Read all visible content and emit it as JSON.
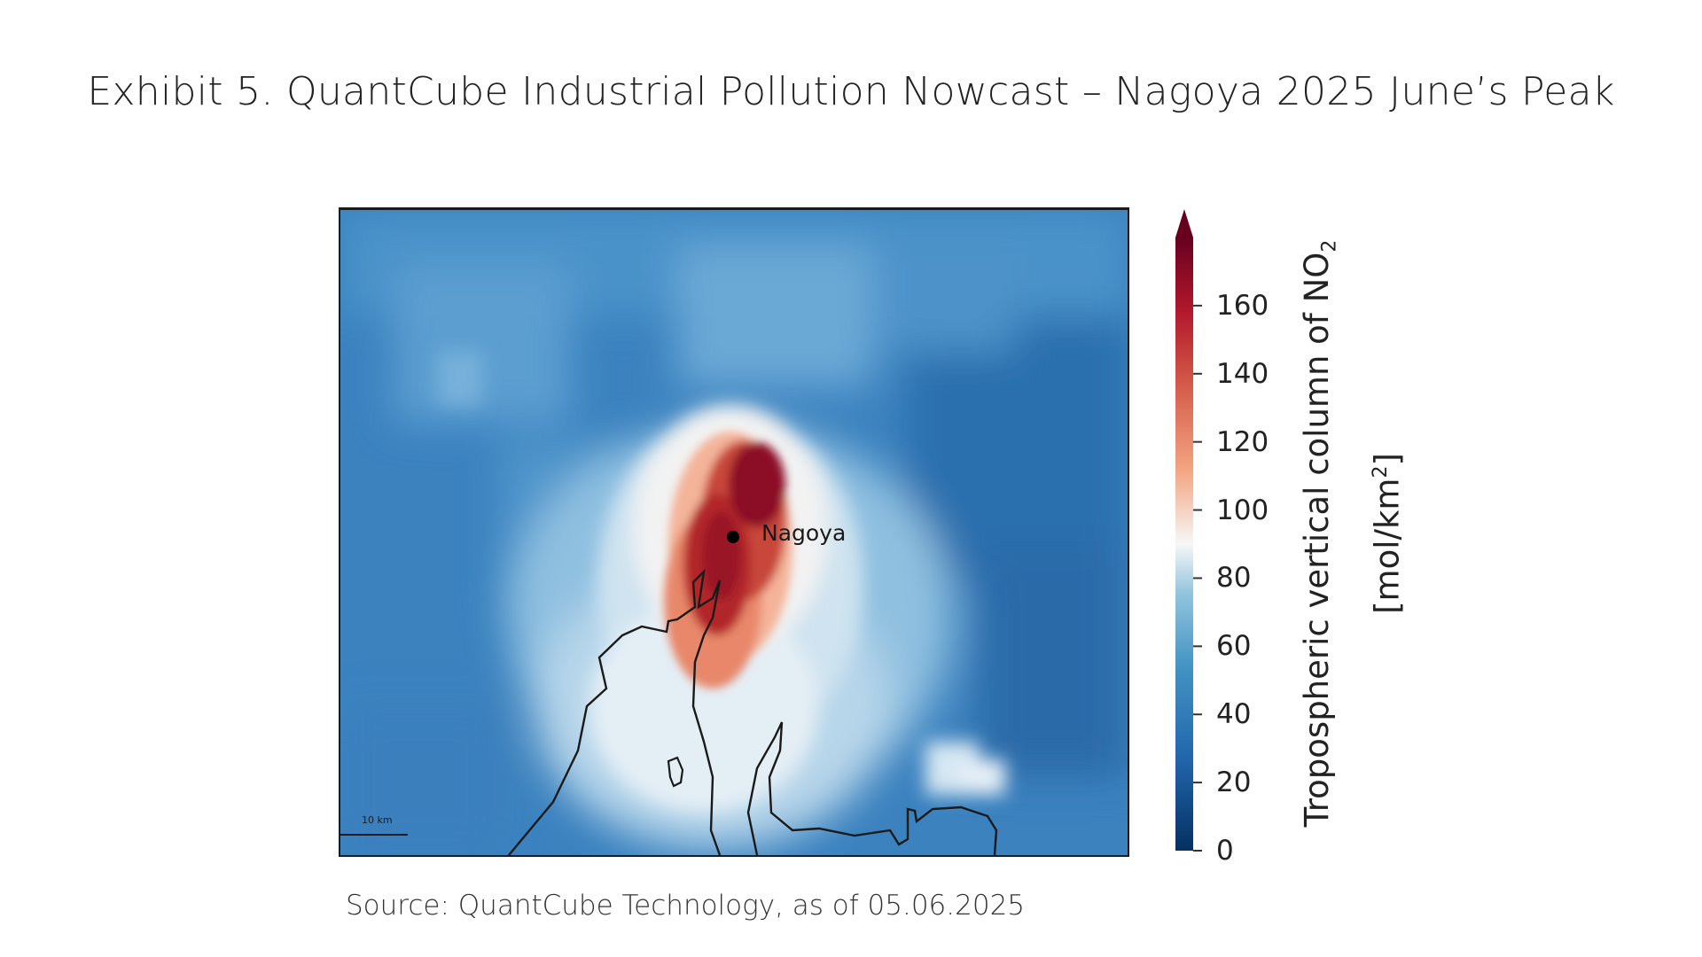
{
  "title": "Exhibit 5. QuantCube Industrial Pollution Nowcast – Nagoya 2025 June’s Peak",
  "map": {
    "city_label": "Nagoya",
    "scale_label": "10 km"
  },
  "colorbar": {
    "title_line1": "Tropospheric vertical column of NO",
    "title_sub": "2",
    "title_line2_prefix": "[mol/km",
    "title_sup": "2",
    "title_line2_suffix": "]",
    "min": 0,
    "max": 180,
    "ticks": [
      "160",
      "140",
      "120",
      "100",
      "80",
      "60",
      "40",
      "20",
      "0"
    ],
    "colors": {
      "low": "#053061",
      "mid_low": "#4393c3",
      "mid": "#f7f7f7",
      "mid_high": "#f4a582",
      "high": "#67001f"
    }
  },
  "source": "Source: QuantCube Technology, as of 05.06.2025"
}
